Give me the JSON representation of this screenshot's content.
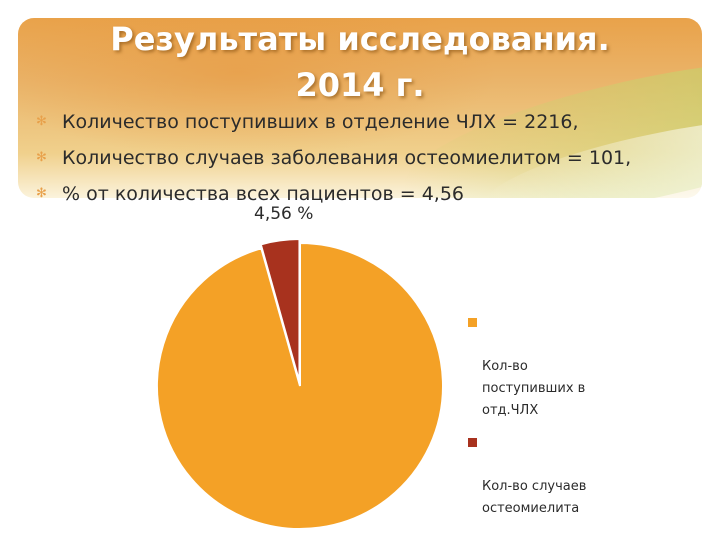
{
  "title": {
    "line1": "Результаты исследования.",
    "line2": "2014 г."
  },
  "bullets": [
    {
      "text": "Количество поступивших в отделение ЧЛХ = ",
      "value": "2216,"
    },
    {
      "text": "Количество случаев заболевания остеомиелитом = ",
      "value": "101,"
    },
    {
      "text": " % от количества всех пациентов = ",
      "value": "4,56"
    }
  ],
  "chart_data": {
    "type": "pie",
    "categories": [
      "Кол-во поступивших в отд.ЧЛХ",
      "Кол-во случаев остеомиелита"
    ],
    "values": [
      2216,
      101
    ],
    "colors": [
      "#f4a126",
      "#a8321e"
    ],
    "data_labels": [
      "",
      "4,56 %"
    ],
    "legend_placement": "right",
    "legend_entries": [
      "Кол-во\nпоступивших в\nотд.ЧЛХ",
      "Кол-во случаев\nостеомиелита"
    ]
  }
}
